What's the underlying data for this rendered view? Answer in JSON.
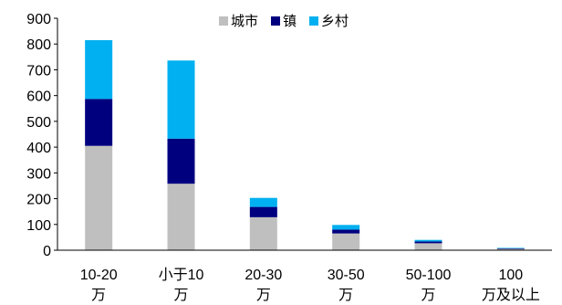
{
  "chart_data": {
    "type": "bar",
    "stacked": true,
    "categories": [
      [
        "10-20",
        "万"
      ],
      [
        "小于10",
        "万"
      ],
      [
        "20-30",
        "万"
      ],
      [
        "30-50",
        "万"
      ],
      [
        "50-100",
        "万"
      ],
      [
        "100",
        "万及以上"
      ]
    ],
    "series": [
      {
        "name": "城市",
        "color": "#bfbfbf",
        "values": [
          405,
          258,
          128,
          65,
          27,
          5
        ]
      },
      {
        "name": "镇",
        "color": "#00007f",
        "values": [
          182,
          175,
          40,
          15,
          7,
          2
        ]
      },
      {
        "name": "乡村",
        "color": "#00b0f0",
        "values": [
          228,
          303,
          35,
          18,
          6,
          2
        ]
      }
    ],
    "ylim": [
      0,
      900
    ],
    "yticks": [
      0,
      100,
      200,
      300,
      400,
      500,
      600,
      700,
      800,
      900
    ],
    "grid": false,
    "legend": "top-center"
  }
}
